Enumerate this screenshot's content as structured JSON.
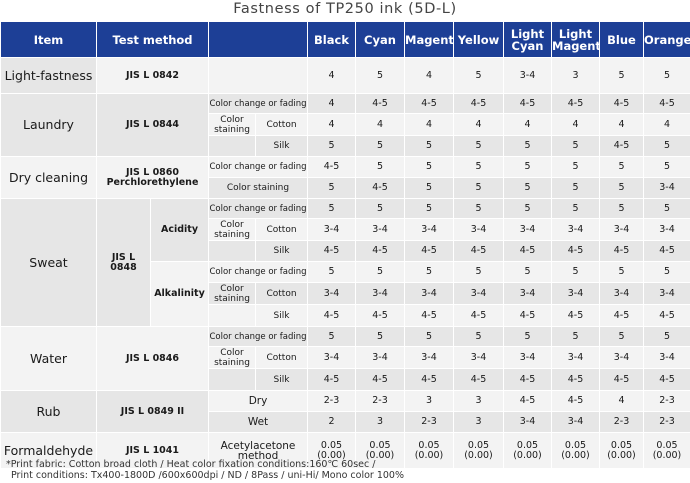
{
  "title": "Fastness of TP250 ink (5D-L)",
  "header": {
    "item": "Item",
    "test_method": "Test method",
    "colors": [
      "Black",
      "Cyan",
      "Magenta",
      "Yellow",
      "Light Cyan",
      "Light Magenta",
      "Blue",
      "Orange"
    ]
  },
  "rows": {
    "light": {
      "item": "Light-fastness",
      "method": "JIS L 0842",
      "values": [
        "4",
        "5",
        "4",
        "5",
        "3-4",
        "3",
        "5",
        "5"
      ]
    },
    "laundry": {
      "item": "Laundry",
      "method": "JIS L 0844",
      "color_change": "Color change or fading",
      "color_staining": "Color staining",
      "cotton": "Cotton",
      "silk": "Silk",
      "cc_values": [
        "4",
        "4-5",
        "4-5",
        "4-5",
        "4-5",
        "4-5",
        "4-5",
        "4-5"
      ],
      "cotton_values": [
        "4",
        "4",
        "4",
        "4",
        "4",
        "4",
        "4",
        "4"
      ],
      "silk_values": [
        "5",
        "5",
        "5",
        "5",
        "5",
        "5",
        "4-5",
        "5"
      ]
    },
    "dry": {
      "item": "Dry cleaning",
      "method": "JIS L 0860",
      "method2": "Perchlorethylene",
      "color_change": "Color change or fading",
      "color_staining": "Color staining",
      "cc_values": [
        "4-5",
        "5",
        "5",
        "5",
        "5",
        "5",
        "5",
        "5"
      ],
      "cs_values": [
        "5",
        "4-5",
        "5",
        "5",
        "5",
        "5",
        "5",
        "3-4"
      ]
    },
    "sweat": {
      "item": "Sweat",
      "method": "JIS L 0848",
      "acidity": "Acidity",
      "alkalinity": "Alkalinity",
      "color_change": "Color change or fading",
      "color_staining": "Color staining",
      "cotton": "Cotton",
      "silk": "Silk",
      "acid_cc": [
        "5",
        "5",
        "5",
        "5",
        "5",
        "5",
        "5",
        "5"
      ],
      "acid_cotton": [
        "3-4",
        "3-4",
        "3-4",
        "3-4",
        "3-4",
        "3-4",
        "3-4",
        "3-4"
      ],
      "acid_silk": [
        "4-5",
        "4-5",
        "4-5",
        "4-5",
        "4-5",
        "4-5",
        "4-5",
        "4-5"
      ],
      "alk_cc": [
        "5",
        "5",
        "5",
        "5",
        "5",
        "5",
        "5",
        "5"
      ],
      "alk_cotton": [
        "3-4",
        "3-4",
        "3-4",
        "3-4",
        "3-4",
        "3-4",
        "3-4",
        "3-4"
      ],
      "alk_silk": [
        "4-5",
        "4-5",
        "4-5",
        "4-5",
        "4-5",
        "4-5",
        "4-5",
        "4-5"
      ]
    },
    "water": {
      "item": "Water",
      "method": "JIS L 0846",
      "color_change": "Color change or fading",
      "color_staining": "Color staining",
      "cotton": "Cotton",
      "silk": "Silk",
      "cc_values": [
        "5",
        "5",
        "5",
        "5",
        "5",
        "5",
        "5",
        "5"
      ],
      "cotton_values": [
        "3-4",
        "3-4",
        "3-4",
        "3-4",
        "3-4",
        "3-4",
        "3-4",
        "3-4"
      ],
      "silk_values": [
        "4-5",
        "4-5",
        "4-5",
        "4-5",
        "4-5",
        "4-5",
        "4-5",
        "4-5"
      ]
    },
    "rub": {
      "item": "Rub",
      "method": "JIS L 0849 II",
      "dry": "Dry",
      "wet": "Wet",
      "dry_values": [
        "2-3",
        "2-3",
        "3",
        "3",
        "4-5",
        "4-5",
        "4",
        "2-3"
      ],
      "wet_values": [
        "2",
        "3",
        "2-3",
        "3",
        "3-4",
        "3-4",
        "2-3",
        "2-3"
      ]
    },
    "formaldehyde": {
      "item": "Formaldehyde",
      "method": "JIS L 1041",
      "sub": "Acetylacetone method",
      "values": [
        "0.05 (0.00)",
        "0.05 (0.00)",
        "0.05 (0.00)",
        "0.05 (0.00)",
        "0.05 (0.00)",
        "0.05 (0.00)",
        "0.05 (0.00)",
        "0.05 (0.00)"
      ]
    }
  },
  "footnote": {
    "line1": "*Print fabric: Cotton broad cloth / Heat color fixation conditions:160℃ 60sec /",
    "line2": "Print conditions: Tx400-1800D /600x600dpi / ND / 8Pass / uni-Hi/ Mono color 100%"
  }
}
